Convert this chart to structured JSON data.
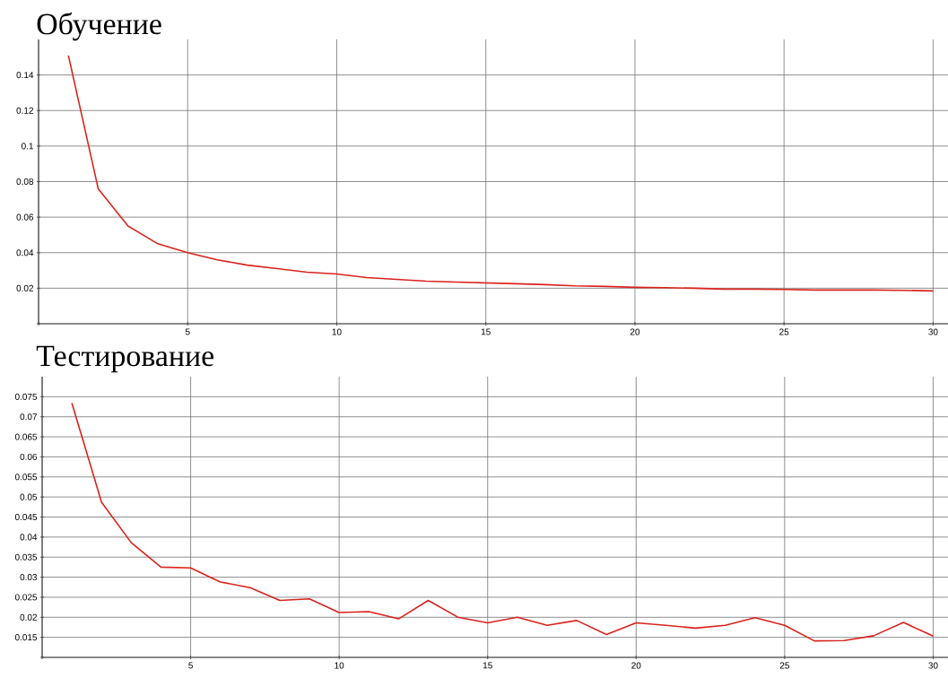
{
  "chart_data": [
    {
      "type": "line",
      "title": "Обучение",
      "x": [
        1,
        2,
        3,
        4,
        5,
        6,
        7,
        8,
        9,
        10,
        11,
        12,
        13,
        14,
        15,
        16,
        17,
        18,
        19,
        20,
        21,
        22,
        23,
        24,
        25,
        26,
        27,
        28,
        29,
        30
      ],
      "series": [
        {
          "color": "#d9231c",
          "values": [
            0.151,
            0.076,
            0.055,
            0.045,
            0.04,
            0.036,
            0.033,
            0.031,
            0.029,
            0.028,
            0.026,
            0.025,
            0.024,
            0.0235,
            0.023,
            0.0225,
            0.022,
            0.0213,
            0.021,
            0.0205,
            0.0203,
            0.02,
            0.0195,
            0.0195,
            0.0193,
            0.019,
            0.019,
            0.019,
            0.0188,
            0.0185
          ]
        }
      ],
      "xlim": [
        0,
        30.5
      ],
      "ylim": [
        0,
        0.16
      ],
      "xticks": [
        {
          "value": 0,
          "label": null
        },
        5,
        10,
        15,
        20,
        25,
        30
      ],
      "yticks": [
        {
          "value": 0,
          "label": null
        },
        0.02,
        0.04,
        0.06,
        0.08,
        0.1,
        0.12,
        0.14
      ],
      "grid": true
    },
    {
      "type": "line",
      "title": "Тестирование",
      "x": [
        1,
        2,
        3,
        4,
        5,
        6,
        7,
        8,
        9,
        10,
        11,
        12,
        13,
        14,
        15,
        16,
        17,
        18,
        19,
        20,
        21,
        22,
        23,
        24,
        25,
        26,
        27,
        28,
        29,
        30
      ],
      "series": [
        {
          "color": "#d9231c",
          "values": [
            0.0734,
            0.0487,
            0.0386,
            0.0325,
            0.0323,
            0.0288,
            0.0274,
            0.0242,
            0.0246,
            0.0212,
            0.0214,
            0.0196,
            0.0242,
            0.02,
            0.0186,
            0.02,
            0.018,
            0.0192,
            0.0157,
            0.0186,
            0.018,
            0.0173,
            0.018,
            0.0199,
            0.018,
            0.0141,
            0.0142,
            0.0154,
            0.0187,
            0.0153
          ]
        }
      ],
      "xlim": [
        0,
        30.5
      ],
      "ylim": [
        0.01,
        0.08
      ],
      "xticks": [
        {
          "value": 0,
          "label": null
        },
        5,
        10,
        15,
        20,
        25,
        30
      ],
      "yticks": [
        {
          "value": 0.01,
          "label": null
        },
        0.015,
        0.02,
        0.025,
        0.03,
        0.035,
        0.04,
        0.045,
        0.05,
        0.055,
        0.06,
        0.065,
        0.07,
        0.075
      ],
      "grid": true
    }
  ]
}
